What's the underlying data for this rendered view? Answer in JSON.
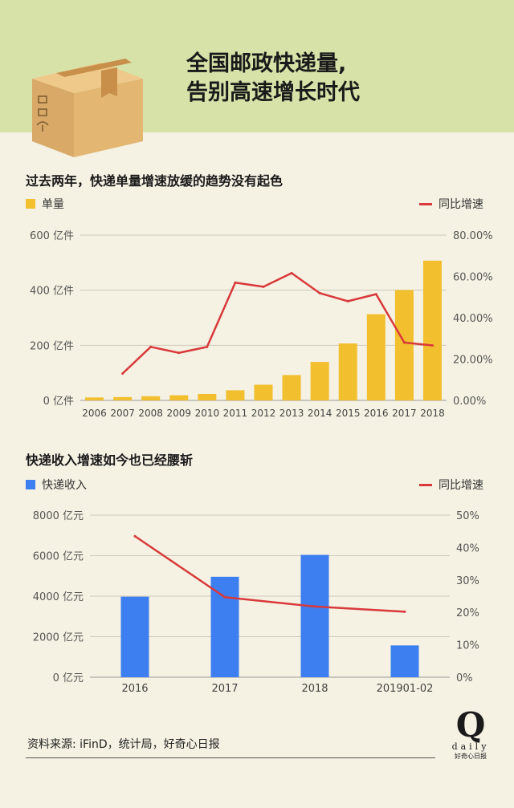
{
  "header": {
    "title_line1": "全国邮政快递量,",
    "title_line2": "告别高速增长时代"
  },
  "section1": {
    "title": "过去两年，快递单量增速放缓的趋势没有起色",
    "legend_bar": "单量",
    "legend_line": "同比增速"
  },
  "section2": {
    "title": "快递收入增速如今也已经腰斩",
    "legend_bar": "快递收入",
    "legend_line": "同比增速"
  },
  "footer": {
    "source": "资料来源: iFinD，统计局，好奇心日报",
    "logo_q": "Q",
    "logo_daily": "daily",
    "logo_name": "好奇心日报"
  },
  "colors": {
    "bar1": "#f2bf2e",
    "bar2": "#3d7ff0",
    "line": "#d9393b",
    "header_bg": "#d6e2a8",
    "page_bg": "#f5f1e3"
  },
  "icons": [
    "cardboard-box-icon"
  ],
  "chart_data": [
    {
      "type": "bar",
      "title": "过去两年，快递单量增速放缓的趋势没有起色",
      "categories": [
        "2006",
        "2007",
        "2008",
        "2009",
        "2010",
        "2011",
        "2012",
        "2013",
        "2014",
        "2015",
        "2016",
        "2017",
        "2018"
      ],
      "series": [
        {
          "name": "单量",
          "type": "bar",
          "axis": "left",
          "values": [
            10.6,
            12.0,
            15.1,
            18.6,
            23.4,
            36.7,
            56.9,
            91.9,
            139.6,
            206.7,
            312.8,
            400.6,
            507.1
          ]
        },
        {
          "name": "同比增速",
          "type": "line",
          "axis": "right",
          "values": [
            null,
            13.0,
            25.9,
            23.0,
            25.9,
            57.0,
            55.0,
            61.6,
            51.9,
            48.0,
            51.4,
            28.0,
            26.6
          ]
        }
      ],
      "y_left": {
        "ylim": [
          0,
          600
        ],
        "ticks": [
          0,
          200,
          400,
          600
        ],
        "tick_labels": [
          "0 亿件",
          "200 亿件",
          "400 亿件",
          "600 亿件"
        ]
      },
      "y_right": {
        "ylim": [
          0,
          80
        ],
        "ticks": [
          0,
          20,
          40,
          60,
          80
        ],
        "tick_labels": [
          "0.00%",
          "20.00%",
          "40.00%",
          "60.00%",
          "80.00%"
        ]
      },
      "grid": true,
      "legend": "top"
    },
    {
      "type": "bar",
      "title": "快递收入增速如今也已经腰斩",
      "categories": [
        "2016",
        "2017",
        "2018",
        "201901-02"
      ],
      "series": [
        {
          "name": "快递收入",
          "type": "bar",
          "axis": "left",
          "values": [
            3974,
            4957,
            6038,
            1570
          ]
        },
        {
          "name": "同比增速",
          "type": "line",
          "axis": "right",
          "values": [
            43.5,
            24.7,
            21.8,
            20.2
          ]
        }
      ],
      "y_left": {
        "ylim": [
          0,
          8000
        ],
        "ticks": [
          0,
          2000,
          4000,
          6000,
          8000
        ],
        "tick_labels": [
          "0 亿元",
          "2000 亿元",
          "4000 亿元",
          "6000 亿元",
          "8000 亿元"
        ]
      },
      "y_right": {
        "ylim": [
          0,
          50
        ],
        "ticks": [
          0,
          10,
          20,
          30,
          40,
          50
        ],
        "tick_labels": [
          "0%",
          "10%",
          "20%",
          "30%",
          "40%",
          "50%"
        ]
      },
      "grid": true,
      "legend": "top"
    }
  ]
}
